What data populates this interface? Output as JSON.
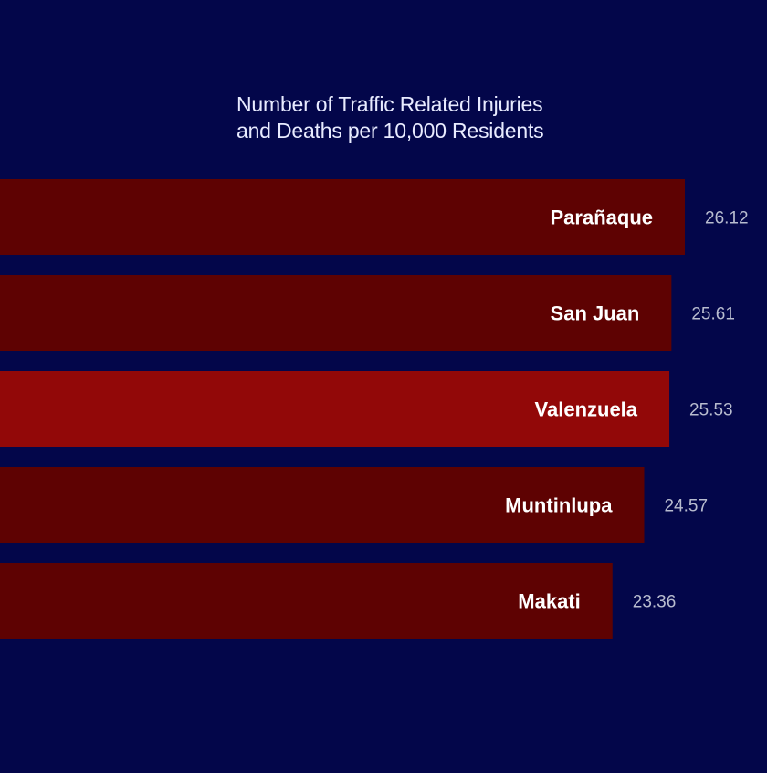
{
  "chart_data": {
    "type": "bar",
    "orientation": "horizontal",
    "title_lines": [
      "Number of Traffic Related Injuries",
      "and Deaths per 10,000 Residents"
    ],
    "categories": [
      "Parañaque",
      "San Juan",
      "Valenzuela",
      "Muntinlupa",
      "Makati"
    ],
    "values": [
      26.12,
      25.61,
      25.53,
      24.57,
      23.36
    ],
    "value_labels": [
      "26.12",
      "25.61",
      "25.53",
      "24.57",
      "23.36"
    ],
    "highlight_index": 2,
    "grid": false,
    "legend": "none"
  },
  "colors": {
    "background": "#03064a",
    "bar": "#5e0202",
    "bar_highlight": "#920808",
    "category_text": "#ffffff",
    "value_text": "#b8bccf",
    "title_text": "#e8ebff"
  }
}
